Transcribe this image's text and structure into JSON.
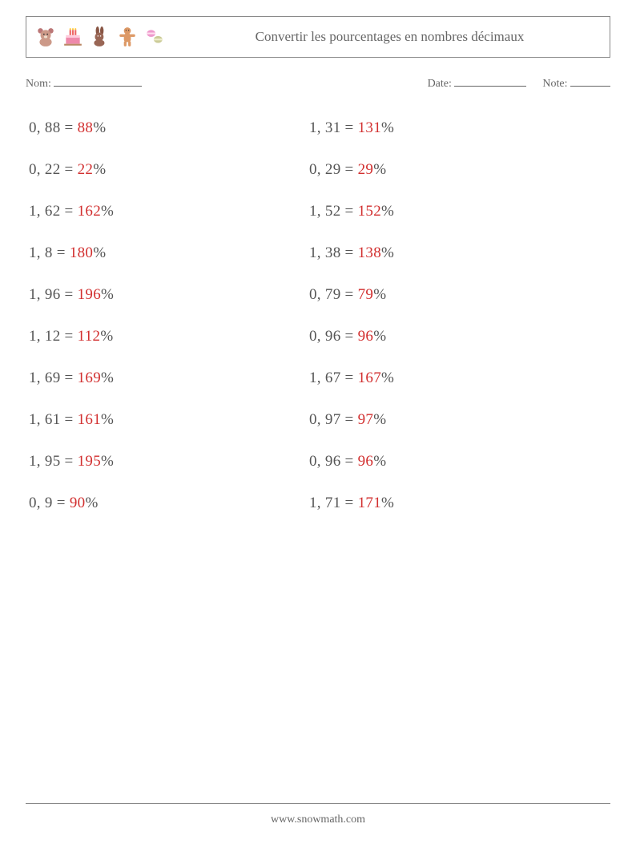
{
  "header": {
    "title": "Convertir les pourcentages en nombres décimaux",
    "icons": [
      "teddy-bear",
      "birthday-cake",
      "chocolate-bunny",
      "gingerbread",
      "macarons"
    ]
  },
  "meta": {
    "name_label": "Nom:",
    "date_label": "Date:",
    "note_label": "Note:",
    "name_blank_width": 110,
    "date_blank_width": 90,
    "note_blank_width": 50
  },
  "style": {
    "text_color": "#555555",
    "answer_color": "#d22f2f",
    "border_color": "#888888",
    "background": "#ffffff",
    "body_fontsize": 19,
    "title_fontsize": 17,
    "meta_fontsize": 14
  },
  "problems": {
    "col1": [
      {
        "decimal": "0, 88",
        "answer": "88"
      },
      {
        "decimal": "0, 22",
        "answer": "22"
      },
      {
        "decimal": "1, 62",
        "answer": "162"
      },
      {
        "decimal": "1, 8",
        "answer": "180"
      },
      {
        "decimal": "1, 96",
        "answer": "196"
      },
      {
        "decimal": "1, 12",
        "answer": "112"
      },
      {
        "decimal": "1, 69",
        "answer": "169"
      },
      {
        "decimal": "1, 61",
        "answer": "161"
      },
      {
        "decimal": "1, 95",
        "answer": "195"
      },
      {
        "decimal": "0, 9",
        "answer": "90"
      }
    ],
    "col2": [
      {
        "decimal": "1, 31",
        "answer": "131"
      },
      {
        "decimal": "0, 29",
        "answer": "29"
      },
      {
        "decimal": "1, 52",
        "answer": "152"
      },
      {
        "decimal": "1, 38",
        "answer": "138"
      },
      {
        "decimal": "0, 79",
        "answer": "79"
      },
      {
        "decimal": "0, 96",
        "answer": "96"
      },
      {
        "decimal": "1, 67",
        "answer": "167"
      },
      {
        "decimal": "0, 97",
        "answer": "97"
      },
      {
        "decimal": "0, 96",
        "answer": "96"
      },
      {
        "decimal": "1, 71",
        "answer": "171"
      }
    ]
  },
  "footer": {
    "url": "www.snowmath.com"
  }
}
